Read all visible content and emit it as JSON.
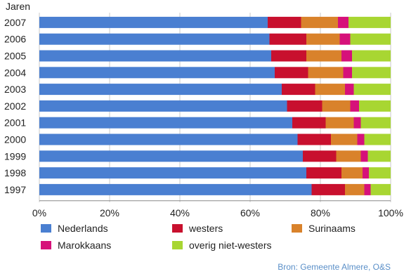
{
  "chart_data": {
    "type": "bar",
    "orientation": "horizontal",
    "stacked": true,
    "percent": true,
    "ylabel": "Jaren",
    "categories": [
      "2007",
      "2006",
      "2005",
      "2004",
      "2003",
      "2002",
      "2001",
      "2000",
      "1999",
      "1998",
      "1997"
    ],
    "xlim": [
      0,
      100
    ],
    "xticks": [
      "0%",
      "20%",
      "40%",
      "60%",
      "80%",
      "100%"
    ],
    "series": [
      {
        "name": "Nederlands",
        "color": "#4a7fd1",
        "values": [
          65,
          65.5,
          66,
          67,
          69,
          70.5,
          72,
          73.5,
          75,
          76,
          77.5
        ]
      },
      {
        "name": "westers",
        "color": "#c8102e",
        "values": [
          9.5,
          10.5,
          10,
          9.5,
          9.5,
          10,
          9.5,
          9.5,
          9.5,
          10,
          9.5
        ]
      },
      {
        "name": "Surinaams",
        "color": "#d9822b",
        "values": [
          10.5,
          9.5,
          10,
          10,
          8.5,
          8,
          8,
          7.5,
          7,
          6,
          5.5
        ]
      },
      {
        "name": "Marokkaans",
        "color": "#d6117a",
        "values": [
          3,
          3,
          3,
          2.5,
          2.5,
          2.5,
          2,
          2,
          2,
          1.8,
          1.8
        ]
      },
      {
        "name": "overig niet-westers",
        "color": "#a8d632",
        "values": [
          12,
          11.5,
          11,
          11,
          10.5,
          9,
          8.5,
          7.5,
          6.5,
          6.2,
          5.7
        ]
      }
    ],
    "grid": true,
    "legend_position": "bottom"
  },
  "source": "Bron: Gemeente Almere, O&S"
}
